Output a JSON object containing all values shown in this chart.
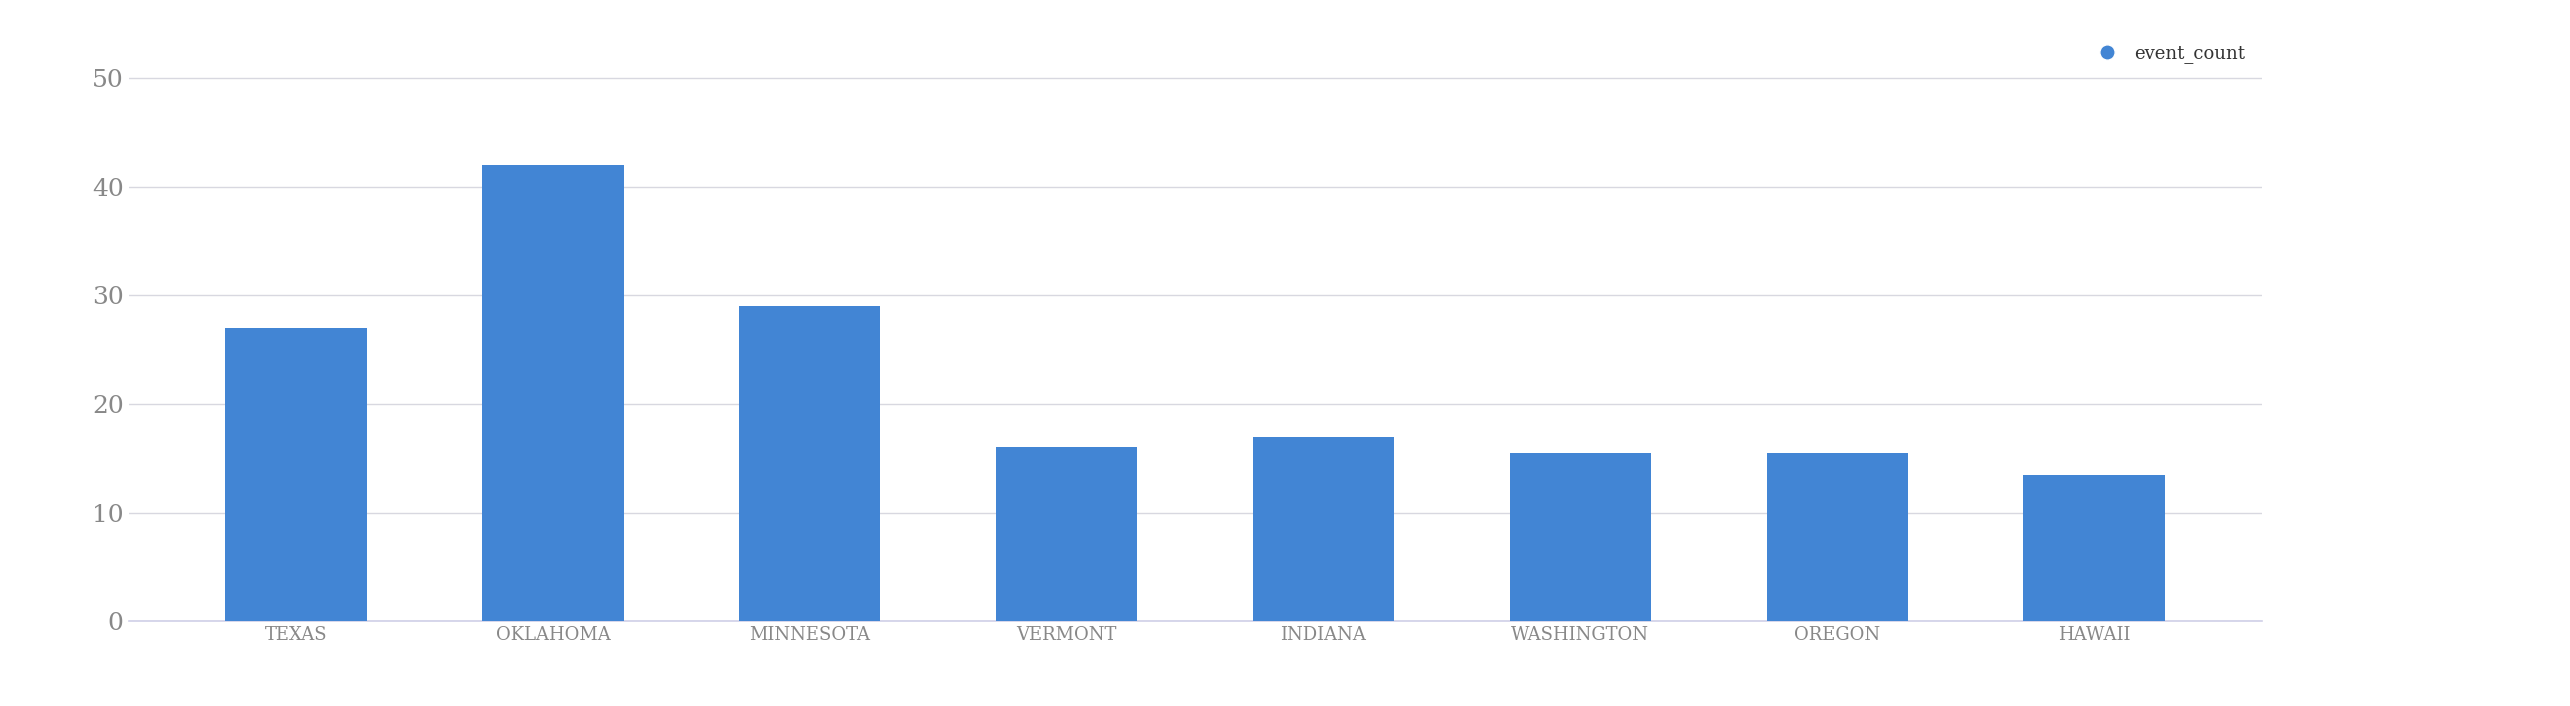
{
  "categories": [
    "TEXAS",
    "OKLAHOMA",
    "MINNESOTA",
    "VERMONT",
    "INDIANA",
    "WASHINGTON",
    "OREGON",
    "HAWAII"
  ],
  "values": [
    27,
    42,
    29,
    16,
    17,
    15.5,
    15.5,
    13.5
  ],
  "bar_color": "#4285d4",
  "legend_label": "event_count",
  "legend_marker_color": "#4285d4",
  "ylim": [
    0,
    52
  ],
  "yticks": [
    0,
    10,
    20,
    30,
    40,
    50
  ],
  "background_color": "#ffffff",
  "grid_color": "#d8d8e0",
  "bottom_spine_color": "#d0d0e8",
  "ytick_label_fontsize": 18,
  "xtick_label_fontsize": 13,
  "legend_fontsize": 13,
  "bar_width": 0.55
}
